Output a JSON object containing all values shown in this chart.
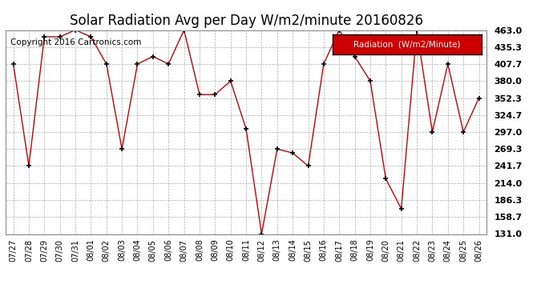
{
  "title": "Solar Radiation Avg per Day W/m2/minute 20160826",
  "copyright": "Copyright 2016 Cartronics.com",
  "legend_label": "Radiation  (W/m2/Minute)",
  "dates": [
    "07/27",
    "07/28",
    "07/29",
    "07/30",
    "07/31",
    "08/01",
    "08/02",
    "08/03",
    "08/04",
    "08/05",
    "08/06",
    "08/07",
    "08/08",
    "08/09",
    "08/10",
    "08/11",
    "08/12",
    "08/13",
    "08/14",
    "08/15",
    "08/16",
    "08/17",
    "08/18",
    "08/19",
    "08/20",
    "08/21",
    "08/22",
    "08/23",
    "08/24",
    "08/25",
    "08/26"
  ],
  "values": [
    407.7,
    241.7,
    452.0,
    452.0,
    463.0,
    452.0,
    407.7,
    269.3,
    407.7,
    420.0,
    407.7,
    463.0,
    358.0,
    358.0,
    380.0,
    302.0,
    131.0,
    269.3,
    263.0,
    241.7,
    407.7,
    463.0,
    420.0,
    380.0,
    221.0,
    172.0,
    463.0,
    297.0,
    407.7,
    297.0,
    352.3
  ],
  "ylim_min": 131.0,
  "ylim_max": 463.0,
  "ytick_values": [
    131.0,
    158.7,
    186.3,
    214.0,
    241.7,
    269.3,
    297.0,
    324.7,
    352.3,
    380.0,
    407.7,
    435.3,
    463.0
  ],
  "line_color": "#cc0000",
  "marker_color": "#000000",
  "background_color": "#ffffff",
  "grid_color": "#999999",
  "title_fontsize": 12,
  "copyright_fontsize": 7.5,
  "legend_bg_color": "#cc0000",
  "legend_text_color": "#ffffff",
  "legend_border_color": "#000000"
}
